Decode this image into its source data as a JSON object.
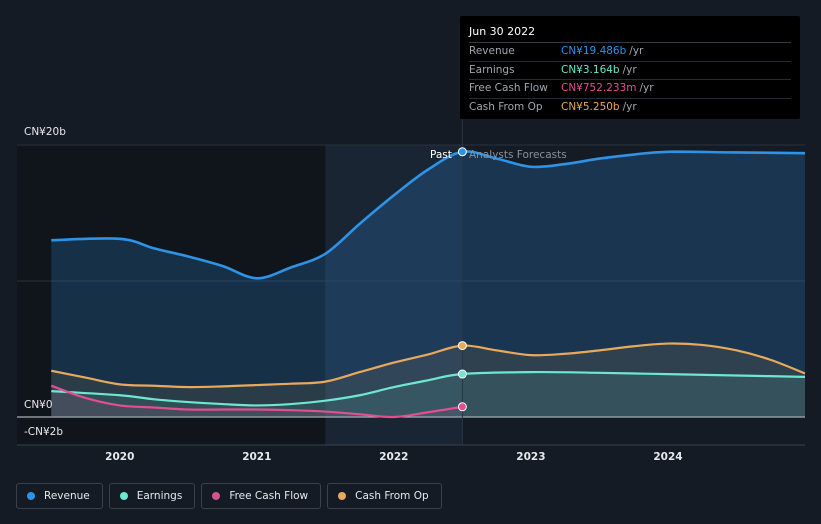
{
  "tooltip": {
    "date": "Jun 30 2022",
    "rows": [
      {
        "label": "Revenue",
        "value": "CN¥19.486b",
        "unit": "/yr",
        "color": "#2e93e6"
      },
      {
        "label": "Earnings",
        "value": "CN¥3.164b",
        "unit": "/yr",
        "color": "#6ee7d2"
      },
      {
        "label": "Free Cash Flow",
        "value": "CN¥752.233m",
        "unit": "/yr",
        "color": "#e0508f"
      },
      {
        "label": "Cash From Op",
        "value": "CN¥5.250b",
        "unit": "/yr",
        "color": "#e8a95c"
      }
    ]
  },
  "labels": {
    "past": "Past",
    "forecast": "Analysts Forecasts"
  },
  "legend": [
    {
      "label": "Revenue",
      "color": "#2e93e6"
    },
    {
      "label": "Earnings",
      "color": "#6ee7d2"
    },
    {
      "label": "Free Cash Flow",
      "color": "#d55290"
    },
    {
      "label": "Cash From Op",
      "color": "#e8a95c"
    }
  ],
  "chart_data": {
    "type": "line",
    "title": "",
    "xlabel": "",
    "ylabel": "",
    "unit": "CN¥ billions",
    "ylim": [
      -2,
      20
    ],
    "y_ticks": [
      {
        "value": 20,
        "label": "CN¥20b"
      },
      {
        "value": 0,
        "label": "CN¥0"
      },
      {
        "value": -2,
        "label": "-CN¥2b"
      }
    ],
    "x_ticks": [
      {
        "value": 2020,
        "label": "2020"
      },
      {
        "value": 2021,
        "label": "2021"
      },
      {
        "value": 2022,
        "label": "2022"
      },
      {
        "value": 2023,
        "label": "2023"
      },
      {
        "value": 2024,
        "label": "2024"
      }
    ],
    "xlim": [
      2019.25,
      2025.0
    ],
    "past_end": 2022.5,
    "highlight_start": 2021.5,
    "series": [
      {
        "name": "Revenue",
        "color": "#2e93e6",
        "x": [
          2019.5,
          2020.0,
          2020.25,
          2020.5,
          2020.75,
          2021.0,
          2021.25,
          2021.5,
          2021.75,
          2022.0,
          2022.25,
          2022.5,
          2022.75,
          2023.0,
          2023.25,
          2023.5,
          2023.75,
          2024.0,
          2024.5,
          2025.0
        ],
        "values": [
          13.0,
          13.1,
          12.4,
          11.8,
          11.1,
          10.2,
          11.0,
          12.0,
          14.2,
          16.3,
          18.2,
          19.5,
          19.0,
          18.4,
          18.6,
          19.0,
          19.3,
          19.5,
          19.45,
          19.4
        ]
      },
      {
        "name": "Earnings",
        "color": "#6ee7d2",
        "x": [
          2019.5,
          2020.0,
          2020.25,
          2020.5,
          2020.75,
          2021.0,
          2021.25,
          2021.5,
          2021.75,
          2022.0,
          2022.25,
          2022.5,
          2023.0,
          2023.5,
          2024.0,
          2024.5,
          2025.0
        ],
        "values": [
          1.9,
          1.6,
          1.3,
          1.1,
          0.95,
          0.85,
          0.95,
          1.2,
          1.6,
          2.2,
          2.7,
          3.16,
          3.3,
          3.25,
          3.15,
          3.05,
          2.95
        ]
      },
      {
        "name": "Free Cash Flow",
        "color": "#e0508f",
        "x": [
          2019.5,
          2019.75,
          2020.0,
          2020.25,
          2020.5,
          2020.75,
          2021.0,
          2021.25,
          2021.5,
          2021.75,
          2022.0,
          2022.25,
          2022.5
        ],
        "values": [
          2.3,
          1.4,
          0.85,
          0.7,
          0.55,
          0.55,
          0.55,
          0.5,
          0.4,
          0.2,
          0.0,
          0.35,
          0.75
        ]
      },
      {
        "name": "Cash From Op",
        "color": "#e8a95c",
        "x": [
          2019.5,
          2019.75,
          2020.0,
          2020.25,
          2020.5,
          2020.75,
          2021.0,
          2021.25,
          2021.5,
          2021.75,
          2022.0,
          2022.25,
          2022.5,
          2022.75,
          2023.0,
          2023.25,
          2023.5,
          2023.75,
          2024.0,
          2024.25,
          2024.5,
          2024.75,
          2025.0
        ],
        "values": [
          3.4,
          2.9,
          2.4,
          2.3,
          2.2,
          2.25,
          2.35,
          2.45,
          2.6,
          3.3,
          4.0,
          4.6,
          5.25,
          4.9,
          4.55,
          4.65,
          4.9,
          5.2,
          5.4,
          5.3,
          4.9,
          4.2,
          3.2
        ]
      }
    ]
  }
}
